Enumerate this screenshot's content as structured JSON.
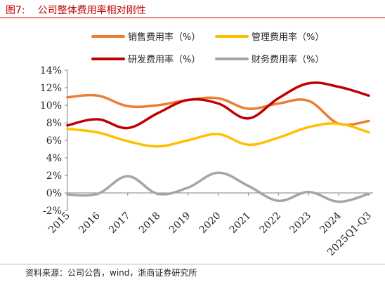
{
  "figure": {
    "label": "图7:",
    "title": "公司整体费用率相对刚性",
    "source": "资料来源：公司公告，wind，浙商证券研究所"
  },
  "chart_data": {
    "type": "line",
    "categories": [
      "2015",
      "2016",
      "2017",
      "2018",
      "2019",
      "2020",
      "2021",
      "2022",
      "2023",
      "2024",
      "2025Q1-Q3"
    ],
    "ylim": [
      -2,
      14
    ],
    "yticks": [
      -2,
      0,
      2,
      4,
      6,
      8,
      10,
      12,
      14
    ],
    "ytick_labels": [
      "-2%",
      "0%",
      "2%",
      "4%",
      "6%",
      "8%",
      "10%",
      "12%",
      "14%"
    ],
    "y_unit": "%",
    "grid": false,
    "legend_position": "top",
    "series": [
      {
        "name": "销售费用率（%）",
        "color": "#ed7d31",
        "values": [
          10.9,
          11.1,
          9.9,
          10.0,
          10.6,
          10.8,
          9.6,
          10.2,
          10.5,
          7.9,
          8.2
        ]
      },
      {
        "name": "管理费用率（%）",
        "color": "#ffc000",
        "values": [
          7.3,
          6.9,
          5.9,
          5.3,
          6.0,
          6.7,
          5.5,
          6.3,
          7.5,
          7.9,
          6.9
        ]
      },
      {
        "name": "研发费用率（%）",
        "color": "#c00000",
        "values": [
          7.7,
          8.4,
          7.4,
          9.1,
          10.6,
          10.2,
          8.5,
          10.8,
          12.5,
          12.1,
          11.1
        ]
      },
      {
        "name": "财务费用率（%）",
        "color": "#a5a5a5",
        "values": [
          -0.2,
          -0.1,
          1.9,
          -0.1,
          0.6,
          2.3,
          0.8,
          -0.9,
          0.1,
          -1.0,
          -0.1
        ]
      }
    ]
  }
}
